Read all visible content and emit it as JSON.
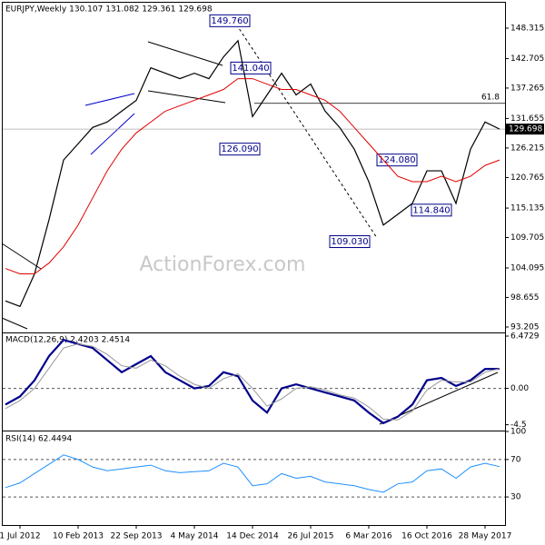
{
  "chart_data": [
    {
      "type": "line",
      "title": "EURJPY,Weekly  130.107 131.082 129.361 129.698",
      "watermark": "ActionForex.com",
      "categories": [
        null,
        "1 Jul 2012",
        null,
        null,
        null,
        "10 Feb 2013",
        null,
        null,
        null,
        "22 Sep 2013",
        null,
        null,
        null,
        "4 May 2014",
        null,
        null,
        null,
        "14 Dec 2014",
        null,
        null,
        null,
        "26 Jul 2015",
        null,
        null,
        null,
        "6 Mar 2016",
        null,
        null,
        null,
        "16 Oct 2016",
        null,
        null,
        null,
        "28 May 2017",
        null
      ],
      "series": [
        {
          "name": "EURJPY",
          "color": "#000000",
          "values": [
            98,
            97,
            103,
            113,
            124,
            127,
            130,
            131,
            133,
            135,
            141,
            140,
            139,
            140,
            139,
            143,
            146,
            132,
            136,
            140,
            136,
            138,
            133,
            130,
            126,
            120,
            112,
            114,
            116,
            122,
            122,
            116,
            126,
            131,
            129.698
          ]
        },
        {
          "name": "MA",
          "color": "#e00000",
          "values": [
            104,
            103,
            103,
            105,
            108,
            112,
            117,
            122,
            126,
            129,
            131,
            133,
            134,
            135,
            136,
            137,
            139,
            139,
            138,
            137,
            137,
            136,
            135,
            133,
            130,
            127,
            124,
            121,
            120,
            120,
            121,
            120,
            121,
            123,
            124
          ]
        }
      ],
      "annotations": [
        {
          "value": 149.76,
          "label": "149.760"
        },
        {
          "value": 141.04,
          "label": "141.040"
        },
        {
          "value": 126.09,
          "label": "126.090"
        },
        {
          "value": 124.08,
          "label": "124.080"
        },
        {
          "value": 114.84,
          "label": "114.840"
        },
        {
          "value": 109.03,
          "label": "109.030"
        }
      ],
      "hlines": [
        {
          "value": 134.45,
          "label": "61.8"
        }
      ],
      "ylim": [
        92.2,
        153.0
      ],
      "yticks": [
        148.315,
        142.705,
        137.265,
        131.655,
        126.215,
        120.765,
        115.135,
        109.705,
        104.095,
        98.655,
        93.205
      ]
    },
    {
      "type": "line",
      "title": "MACD(12,26,9) 2.4203 2.4514",
      "series": [
        {
          "name": "MACD",
          "color": "#00008b",
          "values": [
            -2,
            -1,
            1,
            4,
            6,
            5.5,
            5,
            3.5,
            2,
            3,
            4,
            2,
            1,
            0,
            0.3,
            2,
            1.5,
            -1.5,
            -3,
            0,
            0.5,
            0,
            -0.5,
            -1,
            -1.5,
            -3,
            -4.3,
            -3.5,
            -2,
            1,
            1.3,
            0.3,
            1,
            2.4,
            2.42
          ]
        },
        {
          "name": "Signal",
          "color": "#999999",
          "values": [
            -2.5,
            -1.5,
            0,
            2.5,
            5,
            5.5,
            5.2,
            4.2,
            2.8,
            2.5,
            3.5,
            2.8,
            1.5,
            0.5,
            0,
            1.2,
            1.8,
            0,
            -2.2,
            -1.3,
            0,
            0.2,
            -0.2,
            -0.8,
            -1.2,
            -2.3,
            -3.8,
            -3.9,
            -2.8,
            -0.2,
            1,
            0.8,
            0.8,
            2,
            2.45
          ]
        }
      ],
      "ylim": [
        -5.22,
        6.81
      ],
      "yticks": [
        6.4729,
        {
          "value": 0,
          "label": "0.00"
        },
        -4.5
      ]
    },
    {
      "type": "line",
      "title": "RSI(14) 62.4494",
      "series": [
        {
          "name": "RSI",
          "color": "#1e90ff",
          "values": [
            40,
            45,
            55,
            65,
            75,
            70,
            62,
            58,
            60,
            62,
            64,
            58,
            56,
            57,
            58,
            66,
            62,
            42,
            44,
            55,
            50,
            52,
            46,
            44,
            42,
            38,
            35,
            44,
            46,
            58,
            60,
            50,
            62,
            66,
            62.4494
          ]
        }
      ],
      "ylim": [
        0,
        100
      ],
      "yticks": [
        100,
        70,
        30
      ]
    }
  ]
}
